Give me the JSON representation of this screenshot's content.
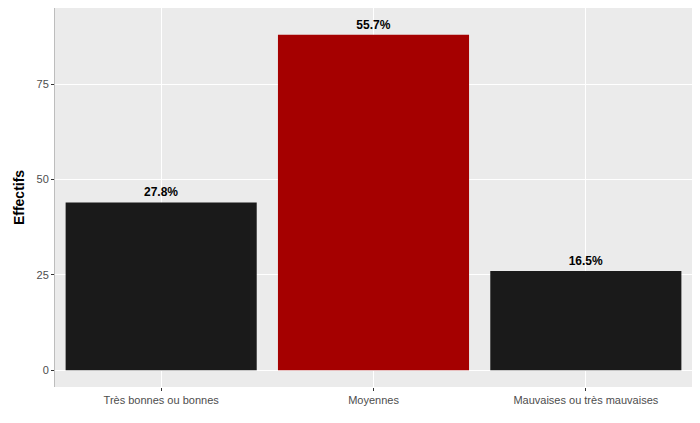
{
  "chart_data": {
    "type": "bar",
    "y_label": "Effectifs",
    "categories": [
      "Très bonnes ou bonnes",
      "Moyennes",
      "Mauvaises ou très mauvaises"
    ],
    "values": [
      44,
      88,
      26
    ],
    "annotations": [
      "27.8%",
      "55.7%",
      "16.5%"
    ],
    "colors": [
      "#1a1a1a",
      "#a50000",
      "#1a1a1a"
    ],
    "ylim": [
      -4.4,
      95
    ],
    "yticks": [
      0,
      25,
      50,
      75
    ],
    "grid": true
  }
}
